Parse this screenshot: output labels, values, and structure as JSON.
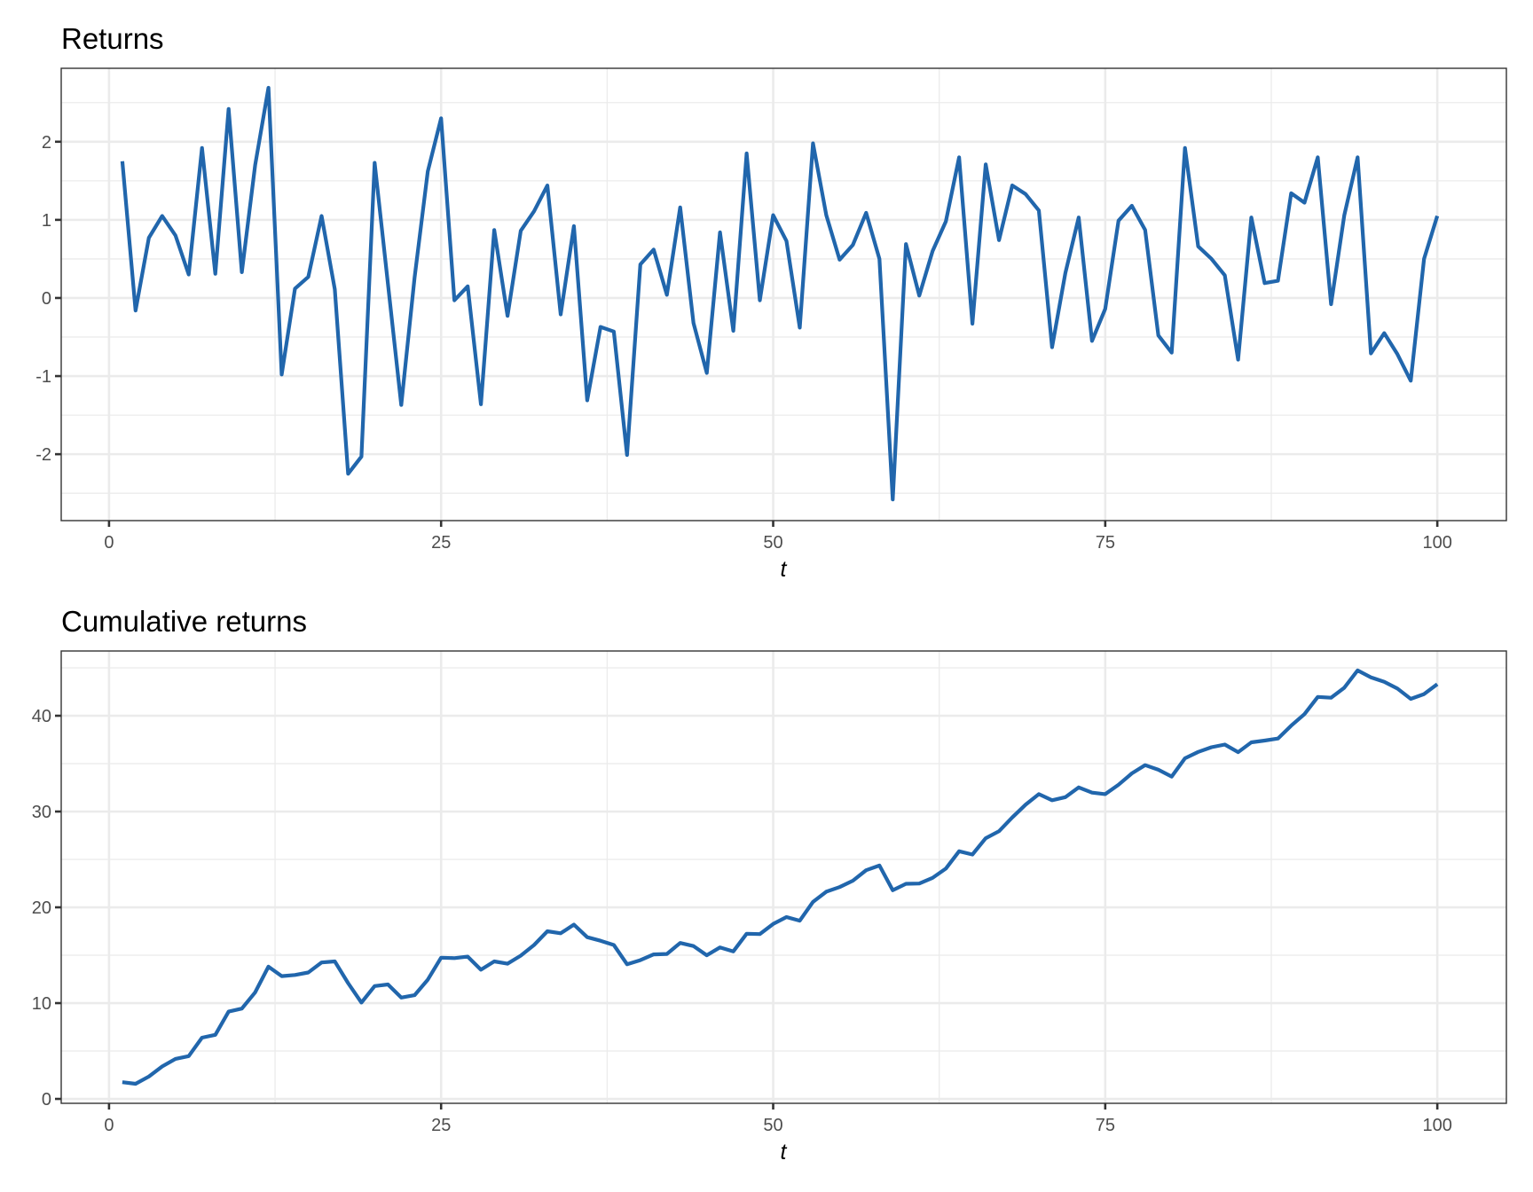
{
  "figure": {
    "panels": [
      {
        "id": "returns",
        "title": "Returns",
        "xlabel": "t"
      },
      {
        "id": "cumulative",
        "title": "Cumulative returns",
        "xlabel": "t"
      }
    ],
    "line_color": "#2166ac"
  },
  "chart_data": [
    {
      "type": "line",
      "title": "Returns",
      "xlabel": "t",
      "ylabel": "",
      "xlim": [
        -3.6,
        105.2
      ],
      "ylim": [
        -2.85,
        2.94
      ],
      "x_ticks": [
        0,
        25,
        50,
        75,
        100
      ],
      "y_ticks": [
        -2,
        -1,
        0,
        1,
        2
      ],
      "grid": true,
      "legend": null,
      "x": [
        1,
        2,
        3,
        4,
        5,
        6,
        7,
        8,
        9,
        10,
        11,
        12,
        13,
        14,
        15,
        16,
        17,
        18,
        19,
        20,
        21,
        22,
        23,
        24,
        25,
        26,
        27,
        28,
        29,
        30,
        31,
        32,
        33,
        34,
        35,
        36,
        37,
        38,
        39,
        40,
        41,
        42,
        43,
        44,
        45,
        46,
        47,
        48,
        49,
        50,
        51,
        52,
        53,
        54,
        55,
        56,
        57,
        58,
        59,
        60,
        61,
        62,
        63,
        64,
        65,
        66,
        67,
        68,
        69,
        70,
        71,
        72,
        73,
        74,
        75,
        76,
        77,
        78,
        79,
        80,
        81,
        82,
        83,
        84,
        85,
        86,
        87,
        88,
        89,
        90,
        91,
        92,
        93,
        94,
        95,
        96,
        97,
        98,
        99,
        100
      ],
      "series": [
        {
          "name": "returns",
          "values": [
            1.75,
            -0.16,
            0.77,
            1.05,
            0.8,
            0.3,
            1.92,
            0.31,
            2.42,
            0.33,
            1.7,
            2.69,
            -0.98,
            0.12,
            0.27,
            1.05,
            0.11,
            -2.25,
            -2.03,
            1.73,
            0.18,
            -1.37,
            0.26,
            1.62,
            2.3,
            -0.03,
            0.15,
            -1.36,
            0.87,
            -0.23,
            0.86,
            1.11,
            1.44,
            -0.21,
            0.92,
            -1.31,
            -0.37,
            -0.43,
            -2.01,
            0.43,
            0.62,
            0.04,
            1.16,
            -0.32,
            -0.96,
            0.84,
            -0.42,
            1.85,
            -0.03,
            1.06,
            0.73,
            -0.38,
            1.98,
            1.06,
            0.49,
            0.68,
            1.09,
            0.5,
            -2.58,
            0.69,
            0.03,
            0.6,
            0.98,
            1.8,
            -0.33,
            1.71,
            0.74,
            1.44,
            1.33,
            1.12,
            -0.63,
            0.32,
            1.03,
            -0.55,
            -0.14,
            0.99,
            1.18,
            0.87,
            -0.48,
            -0.7,
            1.92,
            0.66,
            0.5,
            0.29,
            -0.79,
            1.03,
            0.19,
            0.22,
            1.34,
            1.22,
            1.8,
            -0.08,
            1.06,
            1.8,
            -0.71,
            -0.45,
            -0.72,
            -1.06,
            0.5,
            1.05
          ]
        }
      ]
    },
    {
      "type": "line",
      "title": "Cumulative returns",
      "xlabel": "t",
      "ylabel": "",
      "xlim": [
        -3.6,
        105.2
      ],
      "ylim": [
        -0.46,
        46.76
      ],
      "x_ticks": [
        0,
        25,
        50,
        75,
        100
      ],
      "y_ticks": [
        0,
        10,
        20,
        30,
        40
      ],
      "grid": true,
      "legend": null,
      "x": [
        1,
        2,
        3,
        4,
        5,
        6,
        7,
        8,
        9,
        10,
        11,
        12,
        13,
        14,
        15,
        16,
        17,
        18,
        19,
        20,
        21,
        22,
        23,
        24,
        25,
        26,
        27,
        28,
        29,
        30,
        31,
        32,
        33,
        34,
        35,
        36,
        37,
        38,
        39,
        40,
        41,
        42,
        43,
        44,
        45,
        46,
        47,
        48,
        49,
        50,
        51,
        52,
        53,
        54,
        55,
        56,
        57,
        58,
        59,
        60,
        61,
        62,
        63,
        64,
        65,
        66,
        67,
        68,
        69,
        70,
        71,
        72,
        73,
        74,
        75,
        76,
        77,
        78,
        79,
        80,
        81,
        82,
        83,
        84,
        85,
        86,
        87,
        88,
        89,
        90,
        91,
        92,
        93,
        94,
        95,
        96,
        97,
        98,
        99,
        100
      ],
      "series": [
        {
          "name": "cumulative returns",
          "values": [
            1.74,
            1.58,
            2.34,
            3.39,
            4.18,
            4.47,
            6.39,
            6.69,
            9.11,
            9.43,
            11.12,
            13.81,
            12.82,
            12.94,
            13.2,
            14.24,
            14.35,
            12.09,
            10.06,
            11.78,
            11.95,
            10.58,
            10.83,
            12.45,
            14.74,
            14.7,
            14.85,
            13.48,
            14.35,
            14.11,
            14.96,
            16.07,
            17.5,
            17.29,
            18.2,
            16.88,
            16.51,
            16.07,
            14.06,
            14.48,
            15.09,
            15.13,
            16.28,
            15.96,
            14.99,
            15.82,
            15.4,
            17.24,
            17.21,
            18.26,
            18.98,
            18.6,
            20.57,
            21.63,
            22.11,
            22.78,
            23.87,
            24.36,
            21.78,
            22.46,
            22.48,
            23.08,
            24.05,
            25.85,
            25.51,
            27.21,
            27.95,
            29.38,
            30.71,
            31.82,
            31.18,
            31.5,
            32.52,
            31.97,
            31.82,
            32.8,
            33.98,
            34.84,
            34.36,
            33.65,
            35.56,
            36.22,
            36.71,
            36.99,
            36.2,
            37.22,
            37.41,
            37.62,
            38.96,
            40.17,
            41.96,
            41.88,
            42.93,
            44.73,
            44.01,
            43.55,
            42.83,
            41.76,
            42.26,
            43.3
          ]
        }
      ]
    }
  ]
}
